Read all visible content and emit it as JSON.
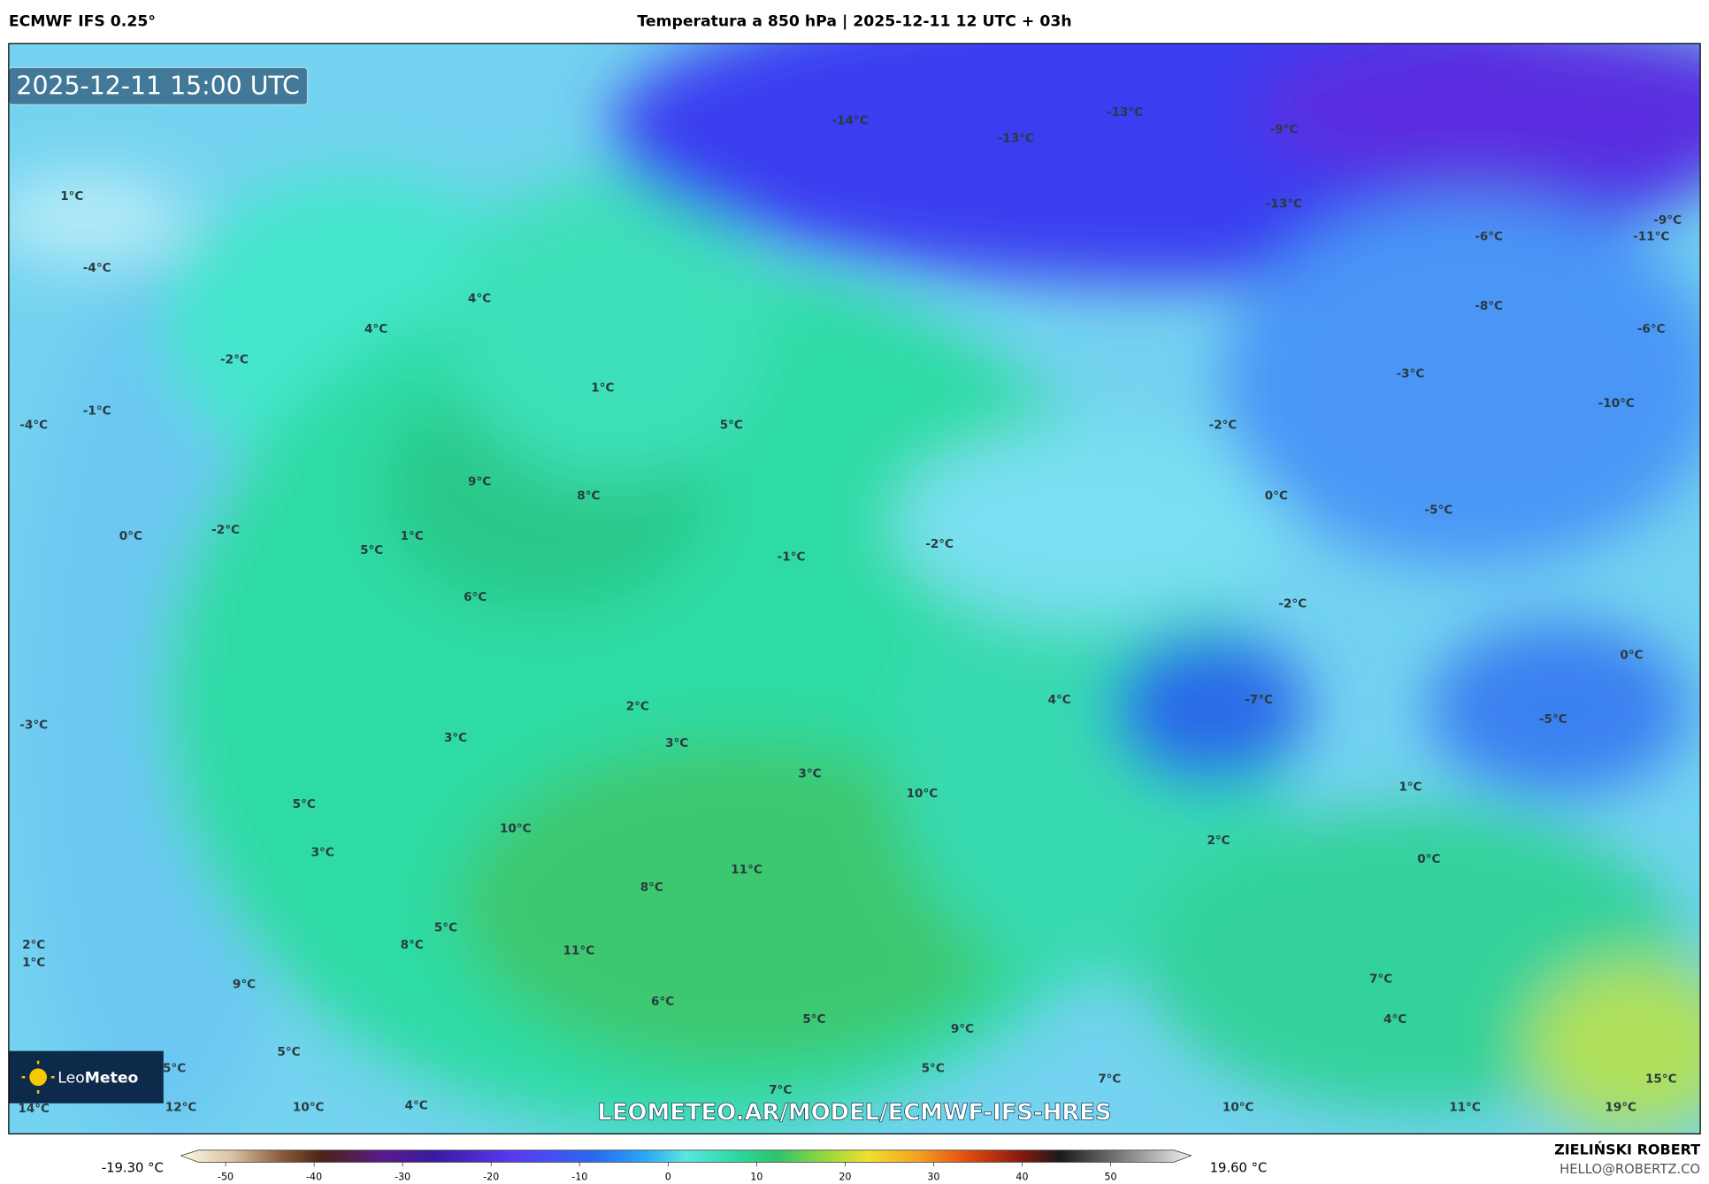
{
  "header": {
    "model": "ECMWF IFS 0.25°",
    "title": "Temperatura a 850 hPa | 2025-12-11 12 UTC + 03h"
  },
  "map": {
    "valid_time": "2025-12-11 15:00 UTC",
    "labels": [
      "1°C",
      "-4°C",
      "4°C",
      "4°C",
      "-2°C",
      "-1°C",
      "-4°C",
      "1°C",
      "5°C",
      "9°C",
      "8°C",
      "0°C",
      "-2°C",
      "5°C",
      "1°C",
      "6°C",
      "-1°C",
      "-2°C",
      "-14°C",
      "-13°C",
      "-13°C",
      "-9°C",
      "-13°C",
      "-6°C",
      "-9°C",
      "-11°C",
      "-8°C",
      "-6°C",
      "-3°C",
      "-2°C",
      "-10°C",
      "0°C",
      "-5°C",
      "-2°C",
      "0°C",
      "-7°C",
      "4°C",
      "-5°C",
      "-3°C",
      "2°C",
      "3°C",
      "3°C",
      "3°C",
      "10°C",
      "1°C",
      "5°C",
      "10°C",
      "2°C",
      "3°C",
      "0°C",
      "11°C",
      "8°C",
      "5°C",
      "8°C",
      "2°C",
      "1°C",
      "11°C",
      "9°C",
      "7°C",
      "6°C",
      "5°C",
      "4°C",
      "9°C",
      "5°C",
      "5°C",
      "5°C",
      "15°C",
      "7°C",
      "7°C",
      "14°C",
      "12°C",
      "10°C",
      "4°C",
      "10°C",
      "11°C",
      "19°C"
    ],
    "watermark": "LEOMETEO.AR/MODEL/ECMWF-IFS-HRES",
    "logo": {
      "part1": "Leo",
      "part2": "Meteo"
    }
  },
  "colorbar": {
    "min_label": "-19.30 °C",
    "max_label": "19.60 °C",
    "ticks": [
      -50,
      -40,
      -30,
      -20,
      -10,
      0,
      10,
      20,
      30,
      40,
      50
    ]
  },
  "footer": {
    "author": "ZIELIŃSKI ROBERT",
    "contact": "HELLO@ROBERTZ.CO"
  }
}
